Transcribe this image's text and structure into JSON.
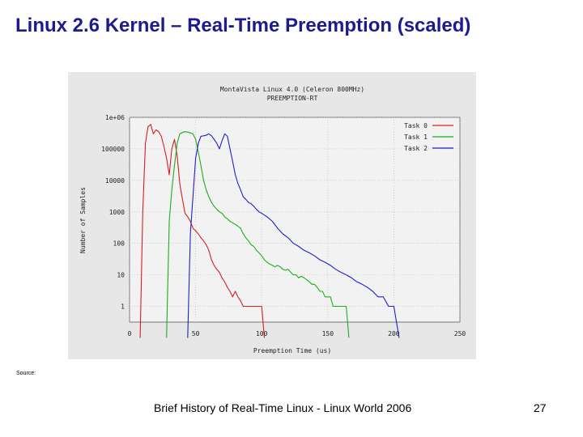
{
  "slide": {
    "title": "Linux 2.6 Kernel – Real-Time Preemption (scaled)",
    "source_note": "Source:",
    "footer": "Brief History of Real-Time Linux - Linux World 2006",
    "page_number": "27"
  },
  "chart_data": {
    "type": "line",
    "title": "MontaVista Linux 4.0 (Celeron 800MHz)",
    "subtitle": "PREEMPTION-RT",
    "xlabel": "Preemption Time (us)",
    "ylabel": "Number of Samples",
    "y_scale": "log",
    "xlim": [
      0,
      250
    ],
    "x_ticks": [
      0,
      50,
      100,
      150,
      200,
      250
    ],
    "y_ticks": [
      1,
      10,
      100,
      1000,
      10000,
      100000,
      1000000
    ],
    "y_tick_labels": [
      "1",
      "10",
      "100",
      "1000",
      "10000",
      "100000",
      "1e+06"
    ],
    "grid": true,
    "legend_position": "top-right",
    "series": [
      {
        "name": "Task 0",
        "color": "#d42020",
        "x": [
          8,
          10,
          12,
          14,
          16,
          18,
          20,
          22,
          24,
          26,
          28,
          30,
          32,
          34,
          36,
          38,
          40,
          42,
          44,
          46,
          48,
          50,
          52,
          54,
          56,
          58,
          60,
          62,
          64,
          66,
          68,
          70,
          72,
          74,
          76,
          78,
          80,
          82,
          84,
          86,
          88,
          90,
          92,
          94,
          96,
          98,
          100,
          102
        ],
        "y": [
          0.1,
          1000,
          150000,
          500000,
          600000,
          300000,
          400000,
          350000,
          250000,
          120000,
          50000,
          15000,
          100000,
          200000,
          60000,
          8000,
          2500,
          900,
          700,
          500,
          300,
          250,
          200,
          150,
          120,
          90,
          60,
          30,
          20,
          15,
          12,
          8,
          6,
          4,
          3,
          2,
          3,
          2,
          1.5,
          1,
          1,
          1,
          1,
          1,
          1,
          1,
          1,
          0.1
        ]
      },
      {
        "name": "Task 1",
        "color": "#18b018",
        "x": [
          28,
          30,
          32,
          34,
          36,
          38,
          40,
          42,
          44,
          46,
          48,
          50,
          52,
          54,
          56,
          58,
          60,
          62,
          64,
          66,
          68,
          70,
          72,
          74,
          76,
          78,
          80,
          82,
          84,
          86,
          88,
          90,
          92,
          94,
          96,
          98,
          100,
          102,
          104,
          106,
          108,
          110,
          112,
          114,
          116,
          118,
          120,
          122,
          124,
          126,
          128,
          130,
          132,
          134,
          136,
          138,
          140,
          142,
          144,
          146,
          148,
          150,
          152,
          154,
          156,
          158,
          160,
          162,
          164,
          166
        ],
        "y": [
          0.1,
          500,
          5000,
          30000,
          150000,
          300000,
          330000,
          350000,
          340000,
          320000,
          300000,
          200000,
          80000,
          30000,
          10000,
          5000,
          3000,
          2000,
          1500,
          1200,
          1000,
          900,
          700,
          600,
          500,
          450,
          400,
          350,
          300,
          200,
          150,
          120,
          90,
          80,
          60,
          50,
          40,
          30,
          25,
          22,
          20,
          18,
          20,
          18,
          15,
          14,
          15,
          12,
          10,
          10,
          8,
          9,
          8,
          7,
          6,
          5,
          5,
          4,
          3,
          3,
          2,
          2,
          2,
          1,
          1,
          1,
          1,
          1,
          1,
          0.1
        ]
      },
      {
        "name": "Task 2",
        "color": "#2020c8",
        "x": [
          44,
          46,
          48,
          50,
          52,
          54,
          56,
          58,
          60,
          62,
          64,
          66,
          68,
          70,
          72,
          74,
          76,
          78,
          80,
          82,
          84,
          86,
          88,
          90,
          92,
          94,
          96,
          98,
          100,
          104,
          108,
          112,
          116,
          120,
          124,
          128,
          132,
          136,
          140,
          144,
          148,
          152,
          156,
          160,
          164,
          168,
          172,
          176,
          180,
          184,
          188,
          192,
          196,
          200,
          204
        ],
        "y": [
          0.1,
          200,
          3000,
          50000,
          150000,
          250000,
          260000,
          270000,
          300000,
          260000,
          200000,
          150000,
          100000,
          180000,
          300000,
          250000,
          100000,
          40000,
          15000,
          8000,
          5000,
          3000,
          2500,
          2000,
          1800,
          1500,
          1200,
          1000,
          900,
          700,
          500,
          300,
          200,
          150,
          100,
          80,
          60,
          50,
          40,
          30,
          25,
          20,
          15,
          12,
          10,
          8,
          6,
          5,
          4,
          3,
          2,
          2,
          1,
          1,
          0.1
        ]
      }
    ]
  }
}
